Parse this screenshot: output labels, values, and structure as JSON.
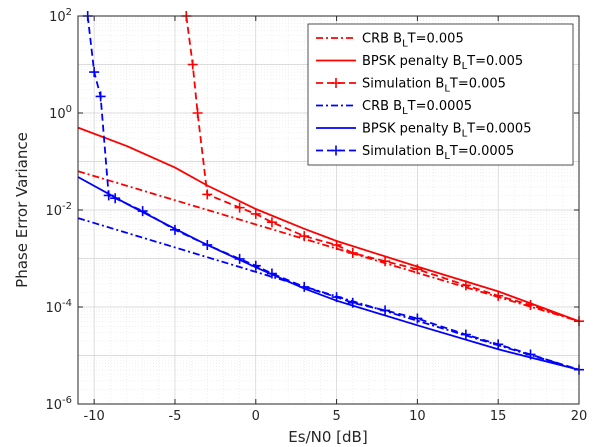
{
  "chart_data": {
    "type": "line",
    "xlabel": "Es/N0 [dB]",
    "ylabel": "Phase Error Variance",
    "xlim": [
      -11,
      20
    ],
    "ylim": [
      1e-06,
      100
    ],
    "yscale": "log",
    "grid": true,
    "minor_grid": true,
    "legend_position": "top-right",
    "x_ticks": [
      -10,
      -5,
      0,
      5,
      10,
      15,
      20
    ],
    "x_tick_labels": [
      "-10",
      "-5",
      "0",
      "5",
      "10",
      "15",
      "20"
    ],
    "y_ticks": [
      {
        "value": 1e-06,
        "base": "10",
        "exp": "-6"
      },
      {
        "value": 0.0001,
        "base": "10",
        "exp": "-4"
      },
      {
        "value": 0.01,
        "base": "10",
        "exp": "-2"
      },
      {
        "value": 1,
        "base": "10",
        "exp": "0"
      },
      {
        "value": 100,
        "base": "10",
        "exp": "2"
      }
    ],
    "series": [
      {
        "label": "CRB B",
        "sub": "L",
        "suffix": "T=0.005",
        "color": "#ff0000",
        "style": "dashdot",
        "marker": "none",
        "x": [
          -11,
          20
        ],
        "y": [
          0.063,
          5.1e-05
        ]
      },
      {
        "label": "BPSK penalty B",
        "sub": "L",
        "suffix": "T=0.005",
        "color": "#ff0000",
        "style": "solid",
        "marker": "none",
        "x": [
          -11,
          -8,
          -5,
          -3,
          0,
          3,
          5,
          10,
          15,
          20
        ],
        "y": [
          0.5,
          0.21,
          0.075,
          0.032,
          0.0105,
          0.0041,
          0.0023,
          0.00068,
          0.00021,
          5.1e-05
        ]
      },
      {
        "label": "Simulation B",
        "sub": "L",
        "suffix": "T=0.005",
        "color": "#ff0000",
        "style": "dashed",
        "marker": "plus",
        "x": [
          -4.3,
          -3.9,
          -3.6,
          -3.0,
          -1.0,
          0.0,
          1.0,
          3.0,
          5.0,
          6.0,
          8.0,
          10.0,
          13.0,
          15.0,
          17.0,
          20.0
        ],
        "y": [
          100,
          10,
          1.0,
          0.021,
          0.0112,
          0.0083,
          0.0056,
          0.0029,
          0.0019,
          0.0013,
          0.00088,
          0.0006,
          0.00028,
          0.00017,
          0.00011,
          5.1e-05
        ]
      },
      {
        "label": "CRB B",
        "sub": "L",
        "suffix": "T=0.0005",
        "color": "#0000ff",
        "style": "dashdot",
        "marker": "none",
        "x": [
          -11,
          20
        ],
        "y": [
          0.0068,
          5.1e-06
        ]
      },
      {
        "label": "BPSK penalty B",
        "sub": "L",
        "suffix": "T=0.0005",
        "color": "#0000ff",
        "style": "solid",
        "marker": "none",
        "x": [
          -11,
          -8,
          -5,
          -3,
          0,
          3,
          5,
          10,
          15,
          20
        ],
        "y": [
          0.048,
          0.0135,
          0.0041,
          0.0019,
          0.00066,
          0.00024,
          0.000135,
          4.2e-05,
          1.34e-05,
          5.1e-06
        ]
      },
      {
        "label": "Simulation B",
        "sub": "L",
        "suffix": "T=0.0005",
        "color": "#0000ff",
        "style": "dashed",
        "marker": "plus",
        "x": [
          -10.4,
          -10.0,
          -9.6,
          -9.1,
          -8.7,
          -7.0,
          -5.0,
          -3.0,
          -1.0,
          0.0,
          1.0,
          3.0,
          5.0,
          6.0,
          8.0,
          10.0,
          13.0,
          15.0,
          17.0,
          20.0
        ],
        "y": [
          100,
          7.0,
          2.2,
          0.02,
          0.0175,
          0.0095,
          0.0039,
          0.0019,
          0.00098,
          0.00071,
          0.00049,
          0.00026,
          0.00016,
          0.000122,
          8.5e-05,
          5.8e-05,
          2.7e-05,
          1.7e-05,
          1.05e-05,
          5.1e-06
        ]
      }
    ]
  }
}
